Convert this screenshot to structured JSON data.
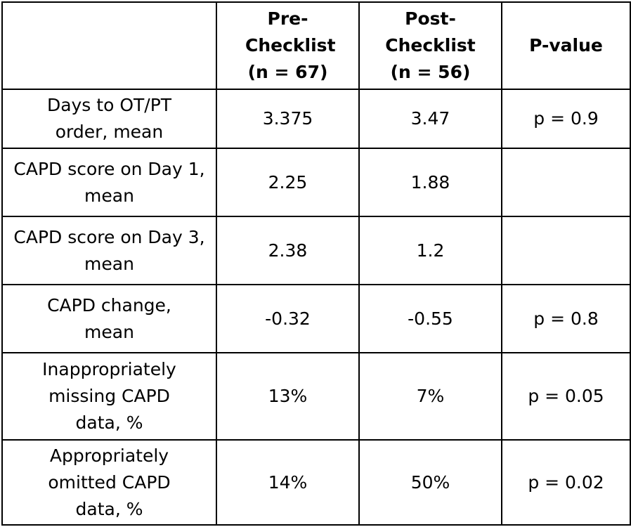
{
  "table": {
    "headers": [
      "",
      "Pre-Checklist (n = 67)",
      "Post-Checklist (n = 56)",
      "P-value"
    ],
    "rows": [
      [
        "Days to OT/PT order, mean",
        "3.375",
        "3.47",
        "p = 0.9"
      ],
      [
        "CAPD score on Day 1, mean",
        "2.25",
        "1.88",
        ""
      ],
      [
        "CAPD score on Day 3, mean",
        "2.38",
        "1.2",
        ""
      ],
      [
        "CAPD change, mean",
        "-0.32",
        "-0.55",
        "p = 0.8"
      ],
      [
        "Inappropriately missing CAPD data, %",
        "13%",
        "7%",
        "p = 0.05"
      ],
      [
        "Appropriately omitted CAPD data, %",
        "14%",
        "50%",
        "p = 0.02"
      ]
    ]
  }
}
